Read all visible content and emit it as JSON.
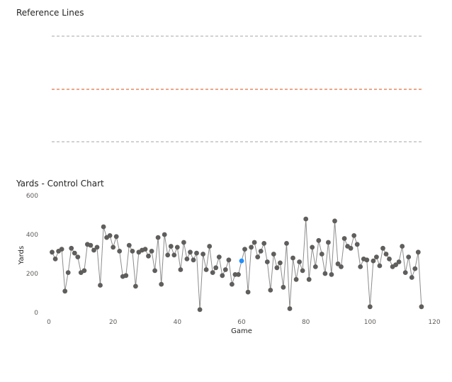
{
  "ref_panel": {
    "title": "Reference Lines",
    "lines": [
      {
        "color": "#a6a6a6"
      },
      {
        "color": "#e07041"
      },
      {
        "color": "#a6a6a6"
      }
    ]
  },
  "control_panel": {
    "title": "Yards - Control Chart"
  },
  "chart_data": {
    "type": "line",
    "title": "Yards - Control Chart",
    "xlabel": "Game",
    "ylabel": "Yards",
    "xlim": [
      0,
      120
    ],
    "ylim": [
      0,
      600
    ],
    "xticks": [
      0,
      20,
      40,
      60,
      80,
      100,
      120
    ],
    "yticks": [
      0,
      200,
      400,
      600
    ],
    "grid": false,
    "line_color": "#8c8c8c",
    "marker_color": "#605e5c",
    "highlight_color": "#1f8fff",
    "highlight_index": 59,
    "series": [
      {
        "x": [
          1,
          2,
          3,
          4,
          5,
          6,
          7,
          8,
          9,
          10,
          11,
          12,
          13,
          14,
          15,
          16,
          17,
          18,
          19,
          20,
          21,
          22,
          23,
          24,
          25,
          26,
          27,
          28,
          29,
          30,
          31,
          32,
          33,
          34,
          35,
          36,
          37,
          38,
          39,
          40,
          41,
          42,
          43,
          44,
          45,
          46,
          47,
          48,
          49,
          50,
          51,
          52,
          53,
          54,
          55,
          56,
          57,
          58,
          59,
          60,
          61,
          62,
          63,
          64,
          65,
          66,
          67,
          68,
          69,
          70,
          71,
          72,
          73,
          74,
          75,
          76,
          77,
          78,
          79,
          80,
          81,
          82,
          83,
          84,
          85,
          86,
          87,
          88,
          89,
          90,
          91,
          92,
          93,
          94,
          95,
          96,
          97,
          98,
          99,
          100,
          101,
          102,
          103,
          104,
          105,
          106,
          107,
          108,
          109,
          110,
          111,
          112,
          113,
          114,
          115,
          116
        ],
        "y": [
          310,
          275,
          315,
          325,
          110,
          205,
          330,
          305,
          285,
          205,
          215,
          350,
          345,
          320,
          335,
          140,
          440,
          385,
          395,
          335,
          390,
          315,
          185,
          190,
          345,
          315,
          135,
          310,
          320,
          325,
          290,
          315,
          215,
          385,
          145,
          400,
          295,
          340,
          295,
          335,
          220,
          360,
          275,
          310,
          270,
          305,
          15,
          300,
          220,
          340,
          205,
          230,
          285,
          190,
          220,
          270,
          145,
          195,
          195,
          265,
          325,
          105,
          335,
          360,
          285,
          315,
          355,
          260,
          115,
          300,
          230,
          255,
          130,
          355,
          20,
          280,
          170,
          260,
          215,
          480,
          170,
          335,
          235,
          370,
          300,
          200,
          360,
          195,
          470,
          250,
          235,
          380,
          340,
          330,
          395,
          350,
          235,
          275,
          270,
          30,
          265,
          285,
          240,
          330,
          300,
          275,
          235,
          245,
          260,
          340,
          205,
          285,
          180,
          225,
          310,
          30
        ]
      }
    ]
  }
}
